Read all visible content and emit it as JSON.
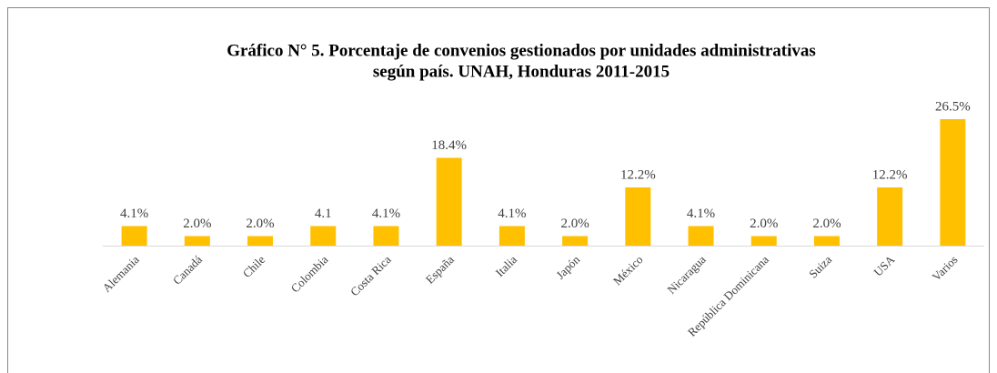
{
  "chart_data": {
    "type": "bar",
    "title": "Gráfico N° 5. Porcentaje de convenios gestionados  por unidades administrativas",
    "subtitle": "según país. UNAH,  Honduras 2011-2015",
    "categories": [
      "Alemania",
      "Canadá",
      "Chile",
      "Colombia",
      "Costa Rica",
      "España",
      "Italia",
      "Japón",
      "México",
      "Nicaragua",
      "República Dominicana",
      "Suiza",
      "USA",
      "Varios"
    ],
    "values": [
      4.1,
      2.0,
      2.0,
      4.1,
      4.1,
      18.4,
      4.1,
      2.0,
      12.2,
      4.1,
      2.0,
      2.0,
      12.2,
      26.5
    ],
    "value_labels": [
      "4.1%",
      "2.0%",
      "2.0%",
      "4.1",
      "4.1%",
      "18.4%",
      "4.1%",
      "2.0%",
      "12.2%",
      "4.1%",
      "2.0%",
      "2.0%",
      "12.2%",
      "26.5%"
    ],
    "color": "#ffc000"
  }
}
